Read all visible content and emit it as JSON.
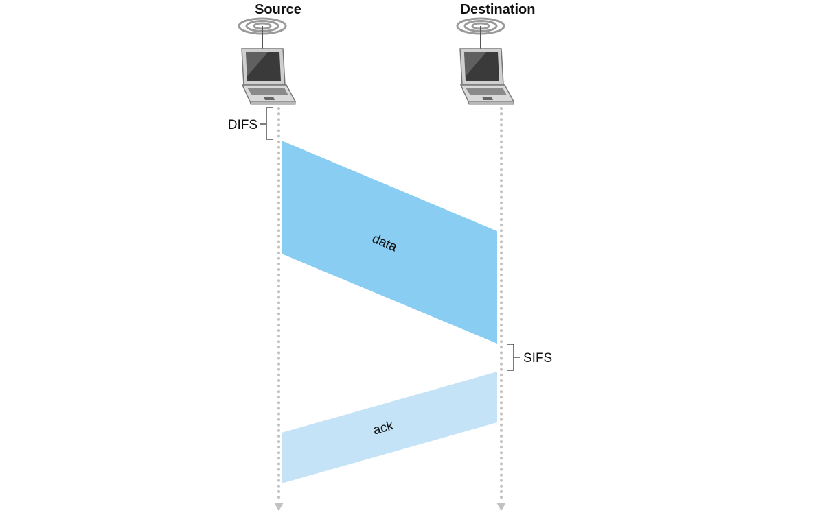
{
  "nodes": {
    "source": {
      "label": "Source",
      "icon": "wireless-laptop-icon"
    },
    "destination": {
      "label": "Destination",
      "icon": "wireless-laptop-icon"
    }
  },
  "intervals": {
    "difs": "DIFS",
    "sifs": "SIFS"
  },
  "frames": {
    "data": {
      "label": "data",
      "color": "#8acdf2"
    },
    "ack": {
      "label": "ack",
      "color": "#c5e3f7"
    }
  },
  "colors": {
    "timeline": "#c2c2c2",
    "bracket": "#333333"
  }
}
